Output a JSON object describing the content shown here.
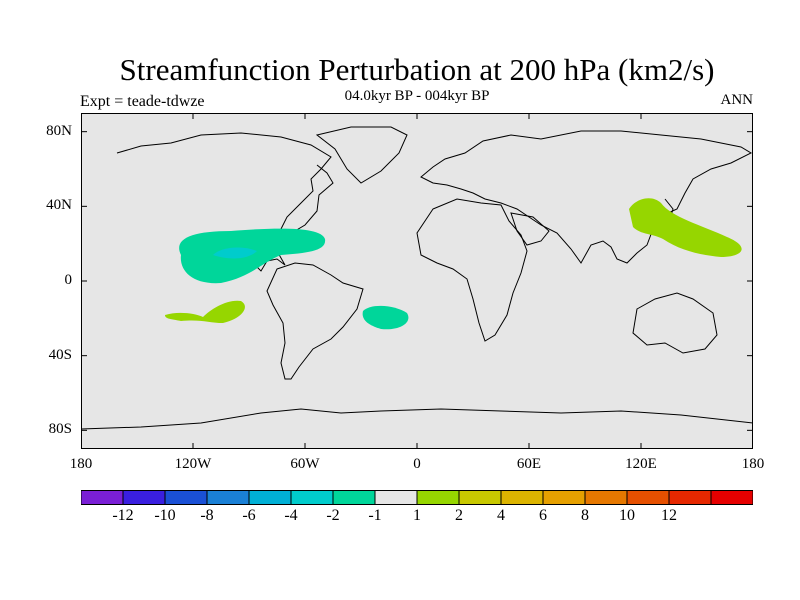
{
  "title": "Streamfunction Perturbation at 200 hPa (km2/s)",
  "left_label": "Expt = teade-tdwze",
  "center_label": "04.0kyr BP - 004kyr BP",
  "right_label": "ANN",
  "lat_ticks": [
    {
      "value": 80,
      "label": "80N"
    },
    {
      "value": 40,
      "label": "40N"
    },
    {
      "value": 0,
      "label": "0"
    },
    {
      "value": -40,
      "label": "40S"
    },
    {
      "value": -80,
      "label": "80S"
    }
  ],
  "lon_ticks": [
    {
      "value": -180,
      "label": "180"
    },
    {
      "value": -120,
      "label": "120W"
    },
    {
      "value": -60,
      "label": "60W"
    },
    {
      "value": 0,
      "label": "0"
    },
    {
      "value": 60,
      "label": "60E"
    },
    {
      "value": 120,
      "label": "120E"
    },
    {
      "value": 180,
      "label": "180"
    }
  ],
  "colorbar": {
    "colors": [
      "#7a1fd6",
      "#3a1fe0",
      "#1a50d6",
      "#1a80d6",
      "#00b0d6",
      "#00cccc",
      "#00d69a",
      "#e6e6e6",
      "#96d600",
      "#c8c800",
      "#dcb400",
      "#e6a000",
      "#e67800",
      "#e65000",
      "#e62800",
      "#e60000"
    ],
    "labels": [
      "-12",
      "-10",
      "-8",
      "-6",
      "-4",
      "-2",
      "-1",
      "1",
      "2",
      "4",
      "6",
      "8",
      "10",
      "12"
    ]
  },
  "colors": {
    "land_sea_fill": "#e6e6e6",
    "negative_1_2": "#00d69a",
    "negative_2_4": "#00cccc",
    "positive_1_2": "#96d600"
  }
}
